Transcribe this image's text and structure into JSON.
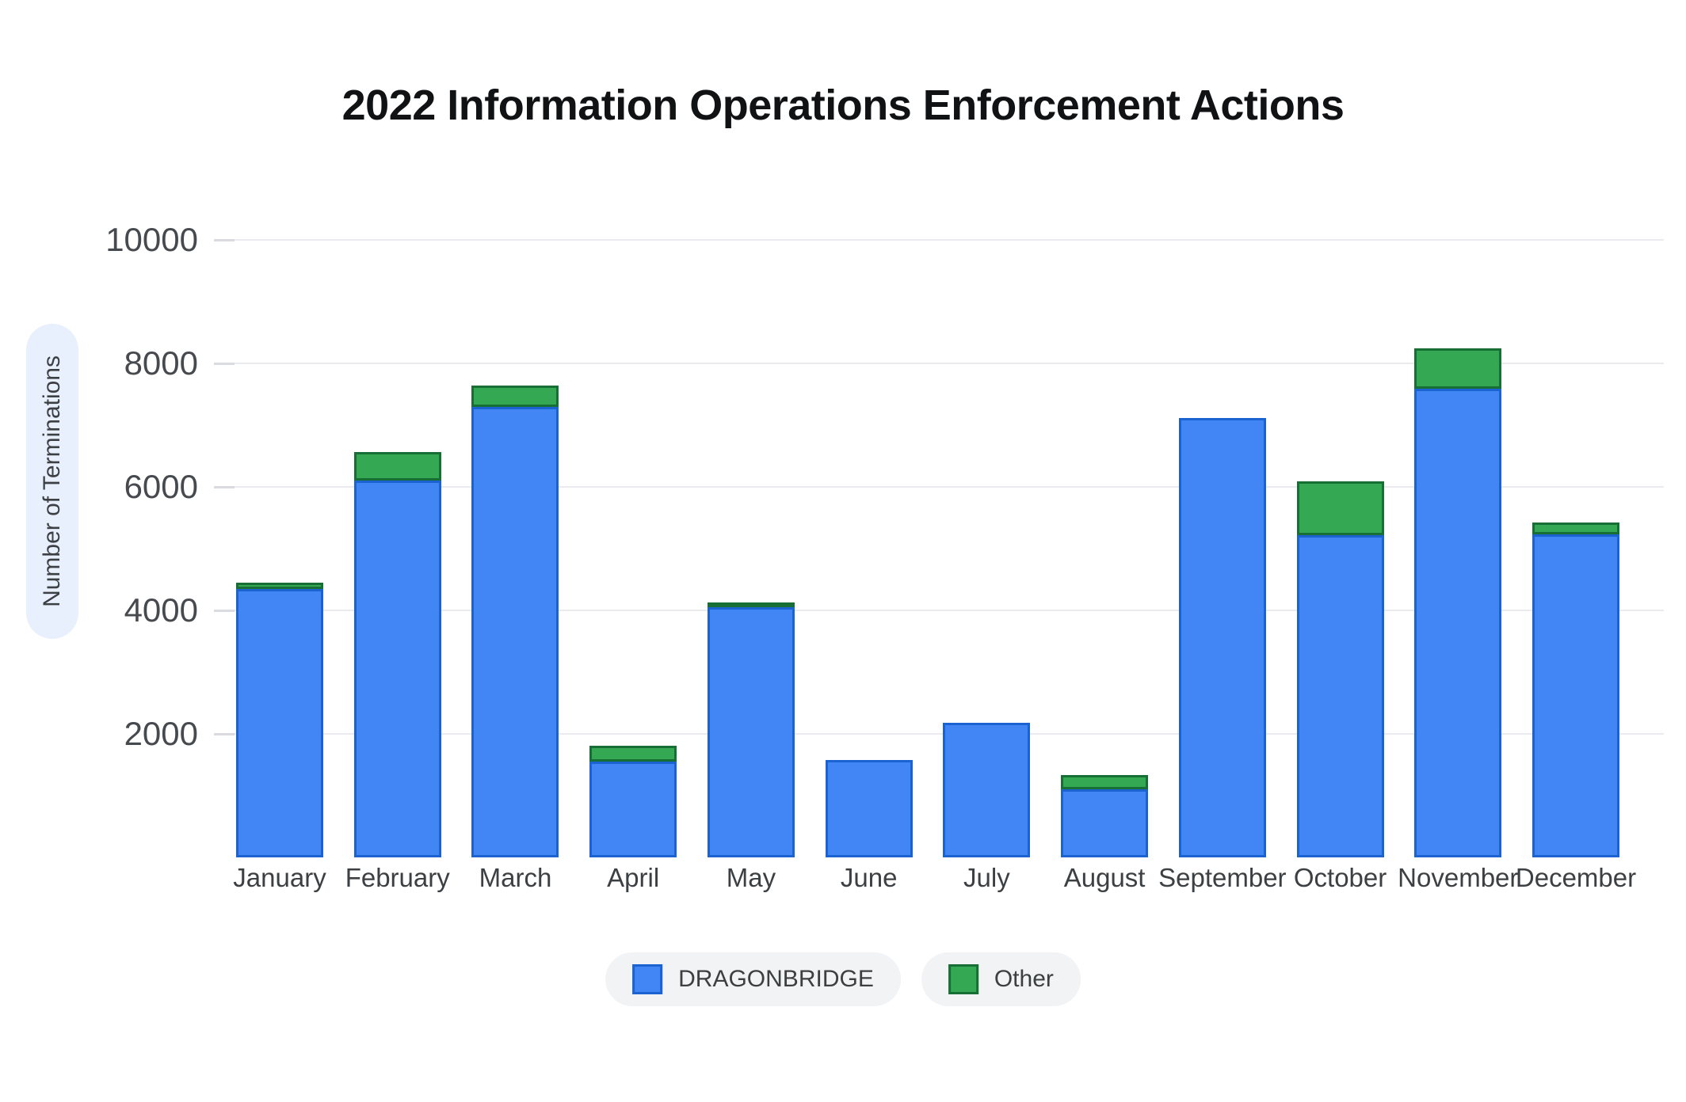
{
  "title": "2022 Information Operations Enforcement Actions",
  "chart_data": {
    "type": "bar",
    "stacked": true,
    "title": "2022 Information Operations Enforcement Actions",
    "categories": [
      "January",
      "February",
      "March",
      "April",
      "May",
      "June",
      "July",
      "August",
      "September",
      "October",
      "November",
      "December"
    ],
    "series": [
      {
        "name": "DRAGONBRIDGE",
        "color": "#4285f4",
        "border_color": "#1a63d1",
        "values": [
          4350,
          6100,
          7300,
          1550,
          4050,
          1575,
          2180,
          1100,
          7115,
          5220,
          7590,
          5230
        ]
      },
      {
        "name": "Other",
        "color": "#34a853",
        "border_color": "#186f36",
        "values": [
          100,
          460,
          350,
          250,
          80,
          0,
          0,
          230,
          0,
          870,
          655,
          190
        ]
      }
    ],
    "totals": [
      4450,
      6560,
      7650,
      1800,
      4130,
      1575,
      2180,
      1330,
      7115,
      6090,
      8245,
      5420
    ],
    "xlabel": "",
    "ylabel": "Number of Terminations",
    "yticks": [
      2000,
      4000,
      6000,
      8000,
      10000
    ],
    "ylim": [
      0,
      10000
    ],
    "grid": true,
    "legend_position": "bottom"
  },
  "legend": {
    "items": [
      {
        "label": "DRAGONBRIDGE",
        "swatch": "blue-square-swatch",
        "color": "#4285f4"
      },
      {
        "label": "Other",
        "swatch": "green-square-swatch",
        "color": "#34a853"
      }
    ]
  },
  "colors": {
    "background": "#ffffff",
    "gridline": "#e9ebee",
    "tick_label": "#46494d",
    "month_label": "#3c4043",
    "title_text": "#111214",
    "ylabel_pill_bg": "#e8f0fe",
    "legend_pill_bg": "#f1f3f4"
  }
}
